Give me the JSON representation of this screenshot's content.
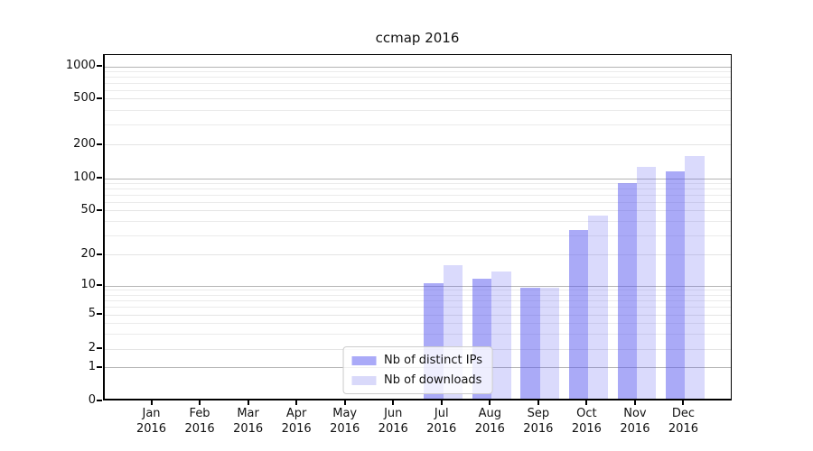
{
  "chart_data": {
    "type": "bar",
    "title": "ccmap 2016",
    "yscale": "symlog",
    "grid": true,
    "legend_position": "lower center",
    "year": "2016",
    "categories": [
      "Jan",
      "Feb",
      "Mar",
      "Apr",
      "May",
      "Jun",
      "Jul",
      "Aug",
      "Sep",
      "Oct",
      "Nov",
      "Dec"
    ],
    "x_tick_labels": [
      "Jan 2016",
      "Feb 2016",
      "Mar 2016",
      "Apr 2016",
      "May 2016",
      "Jun 2016",
      "Jul 2016",
      "Aug 2016",
      "Sep 2016",
      "Oct 2016",
      "Nov 2016",
      "Dec 2016"
    ],
    "y_ticks": [
      0,
      1,
      2,
      5,
      10,
      20,
      50,
      100,
      200,
      500,
      1000
    ],
    "y_minor_gridlines": [
      3,
      4,
      6,
      7,
      8,
      9,
      30,
      40,
      60,
      70,
      80,
      90,
      300,
      400,
      600,
      700,
      800,
      900
    ],
    "ylim": [
      0,
      1300
    ],
    "series": [
      {
        "name": "Nb of distinct IPs",
        "color": "rgba(85,85,240,0.50)",
        "swatch_color": "#aaaaf8",
        "values": [
          0,
          0,
          0,
          0,
          0,
          0,
          10,
          11,
          9,
          32,
          85,
          110
        ]
      },
      {
        "name": "Nb of downloads",
        "color": "rgba(85,85,240,0.22)",
        "swatch_color": "#d9d9fa",
        "values": [
          0,
          0,
          0,
          0,
          0,
          0,
          15,
          13,
          9,
          43,
          120,
          150
        ]
      }
    ]
  }
}
